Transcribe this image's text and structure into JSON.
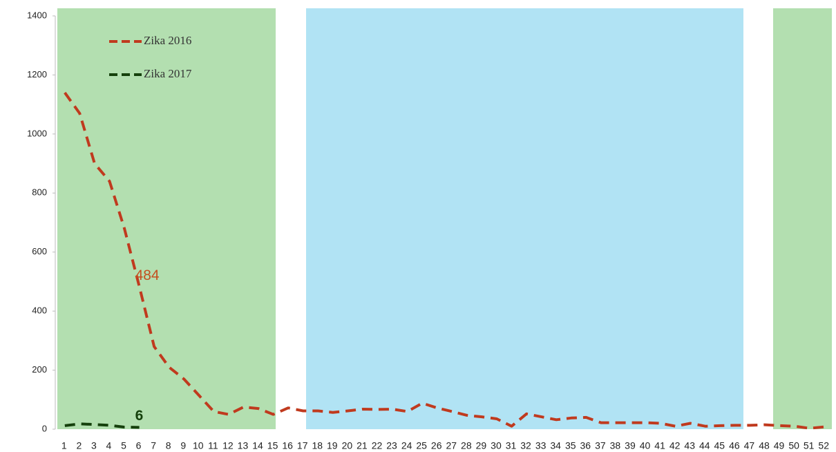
{
  "chart_data": {
    "type": "line",
    "categories": [
      "1",
      "2",
      "3",
      "4",
      "5",
      "6",
      "7",
      "8",
      "9",
      "10",
      "11",
      "12",
      "13",
      "14",
      "15",
      "16",
      "17",
      "18",
      "19",
      "20",
      "21",
      "22",
      "23",
      "24",
      "25",
      "26",
      "27",
      "28",
      "29",
      "30",
      "31",
      "32",
      "33",
      "34",
      "35",
      "36",
      "37",
      "38",
      "39",
      "40",
      "41",
      "42",
      "43",
      "44",
      "45",
      "46",
      "47",
      "48",
      "49",
      "50",
      "51",
      "52"
    ],
    "series": [
      {
        "name": "Zika 2016",
        "color": "#c03a1e",
        "values": [
          1140,
          1070,
          900,
          840,
          680,
          484,
          280,
          210,
          170,
          115,
          60,
          50,
          75,
          70,
          50,
          72,
          62,
          62,
          57,
          62,
          68,
          67,
          68,
          60,
          88,
          72,
          60,
          47,
          42,
          35,
          10,
          52,
          42,
          32,
          38,
          40,
          22,
          22,
          22,
          22,
          20,
          10,
          20,
          10,
          12,
          13,
          13,
          15,
          12,
          10,
          3,
          8
        ]
      },
      {
        "name": "Zika 2017",
        "color": "#15400c",
        "values": [
          12,
          18,
          16,
          13,
          7,
          6,
          null,
          null,
          null,
          null,
          null,
          null,
          null,
          null,
          null,
          null,
          null,
          null,
          null,
          null,
          null,
          null,
          null,
          null,
          null,
          null,
          null,
          null,
          null,
          null,
          null,
          null,
          null,
          null,
          null,
          null,
          null,
          null,
          null,
          null,
          null,
          null,
          null,
          null,
          null,
          null,
          null,
          null,
          null,
          null,
          null,
          null
        ]
      }
    ],
    "ylim": [
      0,
      1400
    ],
    "yticks": [
      0,
      200,
      400,
      600,
      800,
      1000,
      1200,
      1400
    ],
    "legend": "upper left"
  }
}
